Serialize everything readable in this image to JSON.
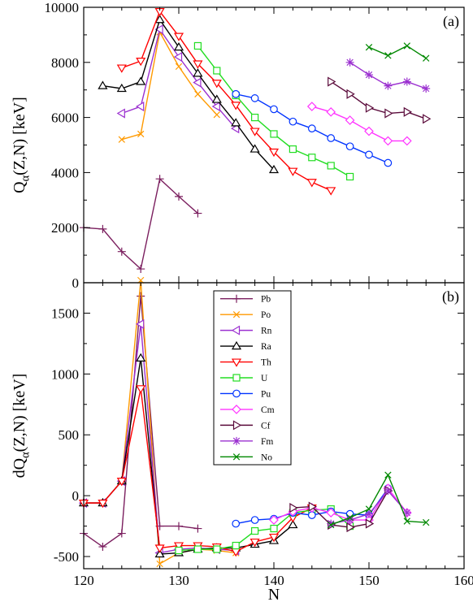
{
  "chart_data": [
    {
      "panel_label": "(a)",
      "type": "line",
      "xlabel": "",
      "ylabel_main": "Q",
      "ylabel_sub": "α",
      "ylabel_rest": "(Z,N)  [keV]",
      "xlim": [
        120,
        160
      ],
      "ylim": [
        0,
        10000
      ],
      "x_ticks": [
        120,
        130,
        140,
        150,
        160
      ],
      "y_ticks": [
        0,
        2000,
        4000,
        6000,
        8000,
        10000
      ],
      "series": [
        {
          "name": "Pb",
          "color": "#7b1f5f",
          "marker": "plus",
          "x": [
            120,
            122,
            124,
            126,
            128,
            130,
            132
          ],
          "y": [
            2000,
            1950,
            1130,
            500,
            3770,
            3130,
            2520
          ]
        },
        {
          "name": "Po",
          "color": "#ff9a00",
          "marker": "x",
          "x": [
            124,
            126,
            128,
            130,
            132,
            134
          ],
          "y": [
            5200,
            5400,
            9100,
            7850,
            6850,
            6100
          ]
        },
        {
          "name": "Rn",
          "color": "#9b30d0",
          "marker": "tri-left",
          "x": [
            124,
            126,
            128,
            130,
            132,
            134,
            136
          ],
          "y": [
            6150,
            6400,
            9200,
            8200,
            7270,
            6400,
            5600
          ]
        },
        {
          "name": "Ra",
          "color": "#000000",
          "marker": "tri-up",
          "x": [
            122,
            124,
            126,
            128,
            130,
            132,
            134,
            136,
            138,
            140
          ],
          "y": [
            7150,
            7050,
            7300,
            9550,
            8550,
            7600,
            6650,
            5800,
            4850,
            4100
          ]
        },
        {
          "name": "Th",
          "color": "#ff0000",
          "marker": "tri-down",
          "x": [
            124,
            126,
            128,
            130,
            132,
            134,
            136,
            138,
            140,
            142,
            144,
            146
          ],
          "y": [
            7800,
            8050,
            9850,
            8950,
            7950,
            7250,
            6450,
            5500,
            4750,
            4050,
            3650,
            3350
          ]
        },
        {
          "name": "U",
          "color": "#22dd22",
          "marker": "square",
          "x": [
            132,
            134,
            136,
            138,
            140,
            142,
            144,
            146,
            148
          ],
          "y": [
            8600,
            7700,
            6800,
            6000,
            5400,
            4850,
            4550,
            4250,
            3850
          ]
        },
        {
          "name": "Pu",
          "color": "#0033ff",
          "marker": "circle",
          "x": [
            136,
            138,
            140,
            142,
            144,
            146,
            148,
            150,
            152
          ],
          "y": [
            6850,
            6700,
            6300,
            5850,
            5600,
            5250,
            4950,
            4650,
            4350
          ]
        },
        {
          "name": "Cm",
          "color": "#ff33ff",
          "marker": "diamond",
          "x": [
            144,
            146,
            148,
            150,
            152,
            154
          ],
          "y": [
            6400,
            6200,
            5900,
            5500,
            5150,
            5150
          ]
        },
        {
          "name": "Cf",
          "color": "#5a0a3a",
          "marker": "tri-right",
          "x": [
            146,
            148,
            150,
            152,
            154,
            156
          ],
          "y": [
            7300,
            6850,
            6350,
            6150,
            6200,
            5950
          ]
        },
        {
          "name": "Fm",
          "color": "#9b30d0",
          "marker": "star",
          "x": [
            148,
            150,
            152,
            154,
            156
          ],
          "y": [
            8000,
            7550,
            7150,
            7300,
            7050
          ]
        },
        {
          "name": "No",
          "color": "#008800",
          "marker": "x",
          "x": [
            150,
            152,
            154,
            156
          ],
          "y": [
            8550,
            8250,
            8600,
            8150
          ]
        }
      ]
    },
    {
      "panel_label": "(b)",
      "type": "line",
      "xlabel": "N",
      "ylabel_main": "dQ",
      "ylabel_sub": "α",
      "ylabel_rest": "(Z,N)  [keV]",
      "xlim": [
        120,
        160
      ],
      "ylim": [
        -600,
        1750
      ],
      "x_ticks": [
        120,
        130,
        140,
        150,
        160
      ],
      "y_ticks": [
        -500,
        0,
        500,
        1000,
        1500
      ],
      "legend_position": "top-center",
      "series": [
        {
          "name": "Pb",
          "color": "#7b1f5f",
          "marker": "plus",
          "x": [
            120,
            122,
            124,
            126,
            128,
            130,
            132
          ],
          "y": [
            -310,
            -420,
            -310,
            1640,
            -250,
            -250,
            -270
          ]
        },
        {
          "name": "Po",
          "color": "#ff9a00",
          "marker": "x",
          "x": [
            120,
            122,
            124,
            126,
            128,
            130,
            132,
            134,
            136
          ],
          "y": [
            -60,
            -60,
            120,
            1770,
            -560,
            -470,
            -440,
            -450,
            -470
          ]
        },
        {
          "name": "Rn",
          "color": "#9b30d0",
          "marker": "tri-left",
          "x": [
            120,
            122,
            124,
            126,
            128,
            130,
            132,
            134,
            136
          ],
          "y": [
            -60,
            -60,
            120,
            1410,
            -470,
            -440,
            -430,
            -440,
            -450
          ]
        },
        {
          "name": "Ra",
          "color": "#000000",
          "marker": "tri-up",
          "x": [
            120,
            122,
            124,
            126,
            128,
            130,
            132,
            134,
            136,
            138,
            140,
            142
          ],
          "y": [
            -60,
            -60,
            120,
            1130,
            -480,
            -470,
            -440,
            -430,
            -430,
            -400,
            -370,
            -240
          ]
        },
        {
          "name": "Th",
          "color": "#ff0000",
          "marker": "tri-down",
          "x": [
            120,
            122,
            124,
            126,
            128,
            130,
            132,
            134,
            136,
            138,
            140,
            142,
            144
          ],
          "y": [
            -60,
            -60,
            120,
            880,
            -430,
            -410,
            -410,
            -420,
            -460,
            -380,
            -340,
            -180,
            -100
          ]
        },
        {
          "name": "U",
          "color": "#22dd22",
          "marker": "square",
          "x": [
            130,
            132,
            134,
            136,
            138,
            140,
            142,
            144,
            146,
            148
          ],
          "y": [
            -450,
            -440,
            -440,
            -410,
            -290,
            -270,
            -140,
            -120,
            -110,
            -250
          ]
        },
        {
          "name": "Pu",
          "color": "#0033ff",
          "marker": "circle",
          "x": [
            136,
            138,
            140,
            142,
            144,
            146,
            148,
            150,
            152
          ],
          "y": [
            -230,
            -200,
            -190,
            -140,
            -160,
            -130,
            -150,
            -160,
            60
          ]
        },
        {
          "name": "Cm",
          "color": "#ff33ff",
          "marker": "diamond",
          "x": [
            140,
            142,
            144,
            146,
            148,
            150,
            152,
            154
          ],
          "y": [
            -200,
            -130,
            -100,
            -140,
            -200,
            -200,
            60,
            -140
          ]
        },
        {
          "name": "Cf",
          "color": "#5a0a3a",
          "marker": "tri-right",
          "x": [
            142,
            144,
            146,
            148,
            150,
            152
          ],
          "y": [
            -100,
            -90,
            -240,
            -260,
            -230,
            40
          ]
        },
        {
          "name": "Fm",
          "color": "#9b30d0",
          "marker": "star",
          "x": [
            146,
            148,
            150,
            152,
            154
          ],
          "y": [
            -230,
            -200,
            -150,
            40,
            -140
          ]
        },
        {
          "name": "No",
          "color": "#008800",
          "marker": "x",
          "x": [
            146,
            148,
            150,
            152,
            154,
            156
          ],
          "y": [
            -240,
            -180,
            -110,
            170,
            -210,
            -220
          ]
        }
      ]
    }
  ]
}
